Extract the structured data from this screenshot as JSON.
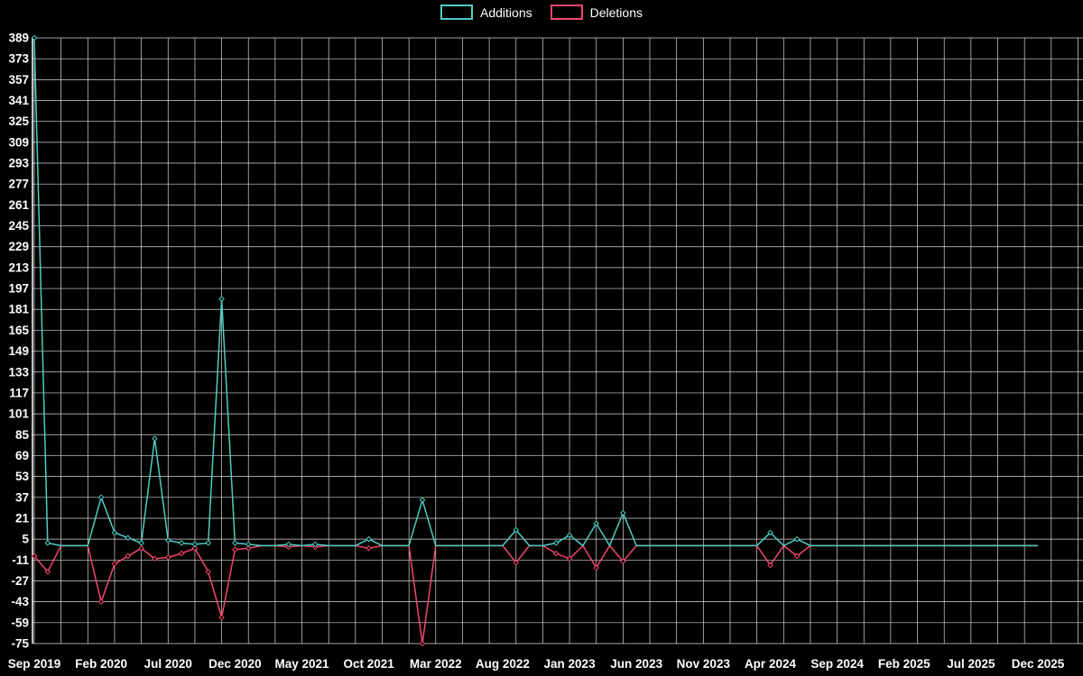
{
  "chart_data": {
    "type": "line",
    "title": "",
    "legend_position": "top-center",
    "grid": true,
    "background_color": "#000000",
    "grid_color": "#ffffff",
    "text_color": "#ffffff",
    "months_total": 76,
    "ylim": [
      -75,
      389
    ],
    "y_ticks": [
      389,
      373,
      357,
      341,
      325,
      309,
      293,
      277,
      261,
      245,
      229,
      213,
      197,
      181,
      165,
      149,
      133,
      117,
      101,
      85,
      69,
      53,
      37,
      21,
      5,
      -11,
      -27,
      -43,
      -59,
      -75
    ],
    "x_tick_labels": [
      "Sep 2019",
      "Feb 2020",
      "Jul 2020",
      "Dec 2020",
      "May 2021",
      "Oct 2021",
      "Mar 2022",
      "Aug 2022",
      "Jan 2023",
      "Jun 2023",
      "Nov 2023",
      "Apr 2024",
      "Sep 2024",
      "Feb 2025",
      "Jul 2025",
      "Dec 2025"
    ],
    "x_tick_month_indices": [
      0,
      5,
      10,
      15,
      20,
      25,
      30,
      35,
      40,
      45,
      50,
      55,
      60,
      65,
      70,
      75
    ],
    "x_start": "Sep 2019",
    "x_end": "Dec 2025",
    "note": "Monthly additions/deletions; deletions are plotted as negative values. Sparse points keyed by month index from Sep 2019; all other months are 0.",
    "series": [
      {
        "name": "Additions",
        "color": "#4ecdc4",
        "points": {
          "0": 389,
          "1": 2,
          "5": 37,
          "6": 10,
          "7": 6,
          "8": 2,
          "9": 82,
          "10": 4,
          "11": 2,
          "12": 1,
          "13": 2,
          "14": 189,
          "15": 2,
          "16": 1,
          "19": 1,
          "21": 1,
          "25": 5,
          "29": 35,
          "36": 12,
          "39": 2,
          "40": 8,
          "42": 17,
          "44": 25,
          "55": 10,
          "57": 5
        }
      },
      {
        "name": "Deletions",
        "color": "#f4476b",
        "points": {
          "0": -8,
          "1": -20,
          "5": -43,
          "6": -14,
          "7": -8,
          "8": -2,
          "9": -10,
          "10": -9,
          "11": -6,
          "12": -2,
          "13": -20,
          "14": -55,
          "15": -3,
          "16": -2,
          "19": -1,
          "21": -1,
          "25": -2,
          "29": -75,
          "36": -13,
          "39": -6,
          "40": -10,
          "42": -17,
          "44": -12,
          "55": -15,
          "57": -8
        }
      }
    ]
  }
}
